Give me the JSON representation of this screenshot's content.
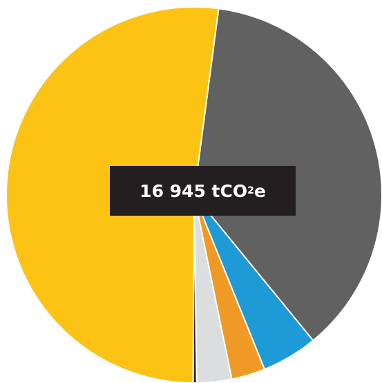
{
  "chart_data": {
    "type": "pie",
    "center_label": {
      "value": "16 945 tCO",
      "subscript": "2",
      "suffix": "e"
    },
    "slices": [
      {
        "value": 37.0,
        "color": "#616161"
      },
      {
        "value": 4.8,
        "color": "#1e9ad6"
      },
      {
        "value": 2.9,
        "color": "#f09a26"
      },
      {
        "value": 3.0,
        "color": "#dcdddf"
      },
      {
        "value": 0.3,
        "color": "#231f20"
      },
      {
        "value": 52.0,
        "color": "#fcc314"
      }
    ]
  }
}
